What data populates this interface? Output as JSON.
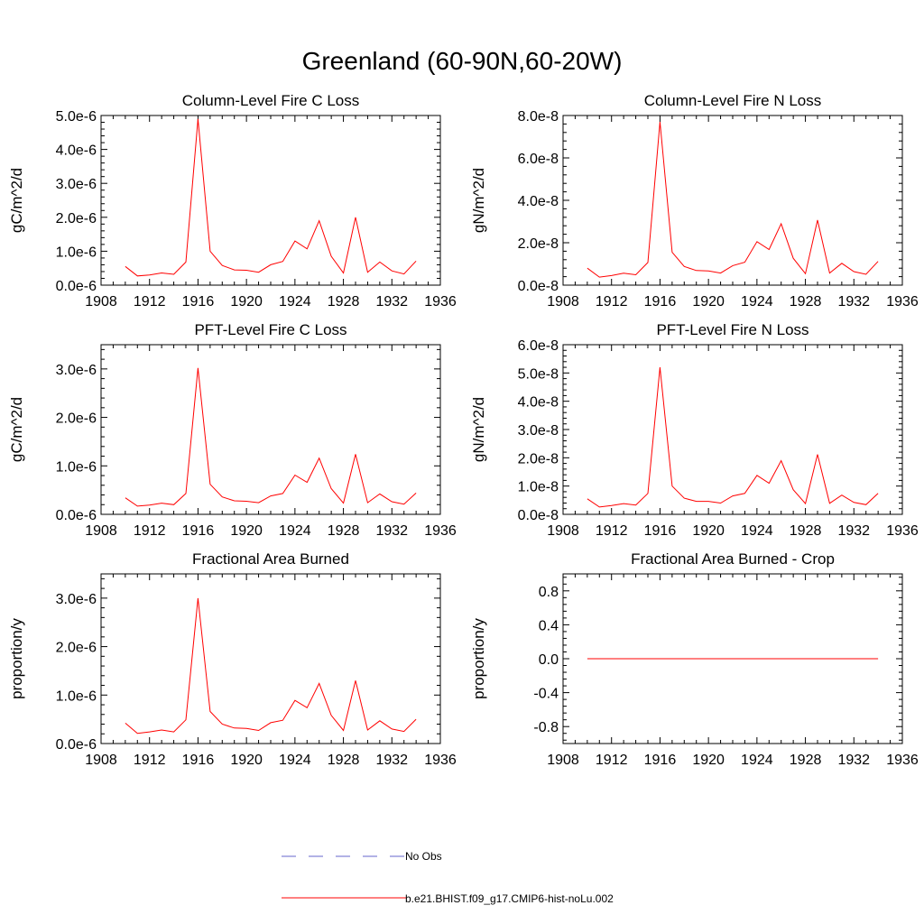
{
  "title": "Greenland (60-90N,60-20W)",
  "colors": {
    "model": "#ff0000",
    "obs": "#6666cc",
    "axis": "#000000"
  },
  "legend": {
    "obs_label": "No Obs",
    "model_label": "b.e21.BHIST.f09_g17.CMIP6-hist-noLu.002"
  },
  "chart_data": [
    {
      "type": "line",
      "title": "Column-Level Fire C Loss",
      "ylabel": "gC/m^2/d",
      "xlim": [
        1908,
        1936
      ],
      "xticks": [
        "1908",
        "1912",
        "1916",
        "1920",
        "1924",
        "1928",
        "1932",
        "1936"
      ],
      "ylim": [
        0,
        5e-06
      ],
      "yticks": [
        {
          "v": 0,
          "label": "0.0e-6"
        },
        {
          "v": 1e-06,
          "label": "1.0e-6"
        },
        {
          "v": 2e-06,
          "label": "2.0e-6"
        },
        {
          "v": 3e-06,
          "label": "3.0e-6"
        },
        {
          "v": 4e-06,
          "label": "4.0e-6"
        },
        {
          "v": 5e-06,
          "label": "5.0e-6"
        }
      ],
      "series": [
        {
          "x": [
            1910,
            1911,
            1912,
            1913,
            1914,
            1915,
            1916,
            1917,
            1918,
            1919,
            1920,
            1921,
            1922,
            1923,
            1924,
            1925,
            1926,
            1927,
            1928,
            1929,
            1930,
            1931,
            1932,
            1933,
            1934
          ],
          "values": [
            5.5e-07,
            2.7e-07,
            3e-07,
            3.6e-07,
            3.2e-07,
            6.8e-07,
            4.9e-06,
            1e-06,
            5.8e-07,
            4.5e-07,
            4.4e-07,
            3.8e-07,
            6e-07,
            7e-07,
            1.3e-06,
            1.07e-06,
            1.9e-06,
            8.5e-07,
            3.6e-07,
            2e-06,
            3.8e-07,
            6.8e-07,
            4.2e-07,
            3.3e-07,
            7.1e-07
          ]
        }
      ]
    },
    {
      "type": "line",
      "title": "Column-Level Fire N Loss",
      "ylabel": "gN/m^2/d",
      "xlim": [
        1908,
        1936
      ],
      "xticks": [
        "1908",
        "1912",
        "1916",
        "1920",
        "1924",
        "1928",
        "1932",
        "1936"
      ],
      "ylim": [
        0,
        8e-08
      ],
      "yticks": [
        {
          "v": 0,
          "label": "0.0e-8"
        },
        {
          "v": 2e-08,
          "label": "2.0e-8"
        },
        {
          "v": 4e-08,
          "label": "4.0e-8"
        },
        {
          "v": 6e-08,
          "label": "6.0e-8"
        },
        {
          "v": 8e-08,
          "label": "8.0e-8"
        }
      ],
      "series": [
        {
          "x": [
            1910,
            1911,
            1912,
            1913,
            1914,
            1915,
            1916,
            1917,
            1918,
            1919,
            1920,
            1921,
            1922,
            1923,
            1924,
            1925,
            1926,
            1927,
            1928,
            1929,
            1930,
            1931,
            1932,
            1933,
            1934
          ],
          "values": [
            8e-09,
            3.8e-09,
            4.5e-09,
            5.6e-09,
            4.9e-09,
            1.07e-08,
            7.7e-08,
            1.55e-08,
            8.8e-09,
            6.9e-09,
            6.7e-09,
            5.7e-09,
            9.2e-09,
            1.08e-08,
            2.05e-08,
            1.68e-08,
            2.9e-08,
            1.27e-08,
            5.4e-09,
            3.07e-08,
            5.7e-09,
            1.03e-08,
            6.4e-09,
            5.1e-09,
            1.12e-08
          ]
        }
      ]
    },
    {
      "type": "line",
      "title": "PFT-Level Fire C Loss",
      "ylabel": "gC/m^2/d",
      "xlim": [
        1908,
        1936
      ],
      "xticks": [
        "1908",
        "1912",
        "1916",
        "1920",
        "1924",
        "1928",
        "1932",
        "1936"
      ],
      "ylim": [
        0,
        3.5e-06
      ],
      "yticks": [
        {
          "v": 0,
          "label": "0.0e-6"
        },
        {
          "v": 1e-06,
          "label": "1.0e-6"
        },
        {
          "v": 2e-06,
          "label": "2.0e-6"
        },
        {
          "v": 3e-06,
          "label": "3.0e-6"
        }
      ],
      "series": [
        {
          "x": [
            1910,
            1911,
            1912,
            1913,
            1914,
            1915,
            1916,
            1917,
            1918,
            1919,
            1920,
            1921,
            1922,
            1923,
            1924,
            1925,
            1926,
            1927,
            1928,
            1929,
            1930,
            1931,
            1932,
            1933,
            1934
          ],
          "values": [
            3.4e-07,
            1.7e-07,
            1.9e-07,
            2.3e-07,
            2e-07,
            4.3e-07,
            3.02e-06,
            6.2e-07,
            3.6e-07,
            2.8e-07,
            2.7e-07,
            2.4e-07,
            3.8e-07,
            4.3e-07,
            8.1e-07,
            6.6e-07,
            1.16e-06,
            5.3e-07,
            2.3e-07,
            1.24e-06,
            2.4e-07,
            4.2e-07,
            2.6e-07,
            2.1e-07,
            4.4e-07
          ]
        }
      ]
    },
    {
      "type": "line",
      "title": "PFT-Level Fire N Loss",
      "ylabel": "gN/m^2/d",
      "xlim": [
        1908,
        1936
      ],
      "xticks": [
        "1908",
        "1912",
        "1916",
        "1920",
        "1924",
        "1928",
        "1932",
        "1936"
      ],
      "ylim": [
        0,
        6e-08
      ],
      "yticks": [
        {
          "v": 0,
          "label": "0.0e-8"
        },
        {
          "v": 1e-08,
          "label": "1.0e-8"
        },
        {
          "v": 2e-08,
          "label": "2.0e-8"
        },
        {
          "v": 3e-08,
          "label": "3.0e-8"
        },
        {
          "v": 4e-08,
          "label": "4.0e-8"
        },
        {
          "v": 5e-08,
          "label": "5.0e-8"
        },
        {
          "v": 6e-08,
          "label": "6.0e-8"
        }
      ],
      "series": [
        {
          "x": [
            1910,
            1911,
            1912,
            1913,
            1914,
            1915,
            1916,
            1917,
            1918,
            1919,
            1920,
            1921,
            1922,
            1923,
            1924,
            1925,
            1926,
            1927,
            1928,
            1929,
            1930,
            1931,
            1932,
            1933,
            1934
          ],
          "values": [
            5.5e-09,
            2.6e-09,
            3.1e-09,
            3.8e-09,
            3.3e-09,
            7.4e-09,
            5.2e-08,
            1e-08,
            5.7e-09,
            4.6e-09,
            4.6e-09,
            4e-09,
            6.5e-09,
            7.4e-09,
            1.38e-08,
            1.1e-08,
            1.9e-08,
            8.7e-09,
            3.8e-09,
            2.12e-08,
            3.9e-09,
            6.8e-09,
            4.2e-09,
            3.4e-09,
            7.4e-09
          ]
        }
      ]
    },
    {
      "type": "line",
      "title": "Fractional Area Burned",
      "ylabel": "proportion/y",
      "xlim": [
        1908,
        1936
      ],
      "xticks": [
        "1908",
        "1912",
        "1916",
        "1920",
        "1924",
        "1928",
        "1932",
        "1936"
      ],
      "ylim": [
        0,
        3.5e-06
      ],
      "yticks": [
        {
          "v": 0,
          "label": "0.0e-6"
        },
        {
          "v": 1e-06,
          "label": "1.0e-6"
        },
        {
          "v": 2e-06,
          "label": "2.0e-6"
        },
        {
          "v": 3e-06,
          "label": "3.0e-6"
        }
      ],
      "series": [
        {
          "x": [
            1910,
            1911,
            1912,
            1913,
            1914,
            1915,
            1916,
            1917,
            1918,
            1919,
            1920,
            1921,
            1922,
            1923,
            1924,
            1925,
            1926,
            1927,
            1928,
            1929,
            1930,
            1931,
            1932,
            1933,
            1934
          ],
          "values": [
            4.2e-07,
            2.1e-07,
            2.4e-07,
            2.8e-07,
            2.4e-07,
            4.9e-07,
            3e-06,
            6.6e-07,
            4e-07,
            3.2e-07,
            3.1e-07,
            2.7e-07,
            4.3e-07,
            4.8e-07,
            8.9e-07,
            7.4e-07,
            1.24e-06,
            5.8e-07,
            2.7e-07,
            1.3e-06,
            2.8e-07,
            4.7e-07,
            3e-07,
            2.5e-07,
            5e-07
          ]
        }
      ]
    },
    {
      "type": "line",
      "title": "Fractional Area Burned - Crop",
      "ylabel": "proportion/y",
      "xlim": [
        1908,
        1936
      ],
      "xticks": [
        "1908",
        "1912",
        "1916",
        "1920",
        "1924",
        "1928",
        "1932",
        "1936"
      ],
      "ylim": [
        -1.0,
        1.0
      ],
      "yticks": [
        {
          "v": -0.8,
          "label": "-0.8"
        },
        {
          "v": -0.4,
          "label": "-0.4"
        },
        {
          "v": 0,
          "label": "0.0"
        },
        {
          "v": 0.4,
          "label": "0.4"
        },
        {
          "v": 0.8,
          "label": "0.8"
        }
      ],
      "series": [
        {
          "x": [
            1910,
            1911,
            1912,
            1913,
            1914,
            1915,
            1916,
            1917,
            1918,
            1919,
            1920,
            1921,
            1922,
            1923,
            1924,
            1925,
            1926,
            1927,
            1928,
            1929,
            1930,
            1931,
            1932,
            1933,
            1934
          ],
          "values": [
            0,
            0,
            0,
            0,
            0,
            0,
            0,
            0,
            0,
            0,
            0,
            0,
            0,
            0,
            0,
            0,
            0,
            0,
            0,
            0,
            0,
            0,
            0,
            0,
            0
          ]
        }
      ]
    }
  ]
}
